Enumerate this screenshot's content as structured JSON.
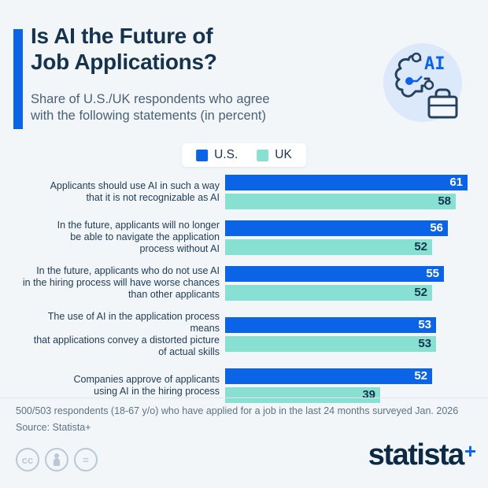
{
  "header": {
    "title": "Is AI the Future of\nJob Applications?",
    "subtitle": "Share of U.S./UK respondents who agree\nwith the following statements (in percent)",
    "accent_color": "#0b63e6",
    "hero_icon": "ai-brain-briefcase-icon",
    "hero_icon_text": "AI"
  },
  "legend": {
    "items": [
      {
        "label": "U.S.",
        "color": "#0b63e6"
      },
      {
        "label": "UK",
        "color": "#87e0d1"
      }
    ]
  },
  "chart_data": {
    "type": "bar",
    "orientation": "horizontal",
    "unit": "percent",
    "grid": false,
    "legend_position": "top-center",
    "xlim": [
      0,
      61
    ],
    "categories": [
      "Applicants should use AI in such a way that it is not recognizable as AI",
      "In the future, applicants will no longer be able to navigate the application process without AI",
      "In the future, applicants who do not use AI in the hiring process will have worse chances than other applicants",
      "The use of AI in the application process means that applications convey a distorted picture of actual skills",
      "Companies approve of applicants using AI in the hiring process"
    ],
    "category_label_lines": [
      [
        "Applicants should use AI in such a way",
        "that it is not recognizable as AI"
      ],
      [
        "In the future, applicants will no longer",
        "be able to navigate the application",
        "process without AI"
      ],
      [
        "In the future, applicants who do not use AI",
        "in the hiring process will have worse chances",
        "than other applicants"
      ],
      [
        "The use of AI in the application process means",
        "that applications convey a distorted picture",
        "of actual skills"
      ],
      [
        "Companies approve of applicants",
        "using AI in the hiring process"
      ]
    ],
    "series": [
      {
        "name": "U.S.",
        "color": "#0b63e6",
        "value_text_color": "#ffffff",
        "values": [
          61,
          56,
          55,
          53,
          52
        ]
      },
      {
        "name": "UK",
        "color": "#87e0d1",
        "value_text_color": "#16334e",
        "values": [
          58,
          52,
          52,
          53,
          39
        ]
      }
    ]
  },
  "footer": {
    "note_line1": "500/503 respondents (18-67 y/o) who have applied for a job in the last 24 months surveyed Jan. 2026",
    "note_line2": "Source: Statista+",
    "license_icons": [
      {
        "name": "cc-license-icon",
        "glyph": "cc"
      },
      {
        "name": "attribution-icon",
        "glyph": "person"
      },
      {
        "name": "equals-icon",
        "glyph": "="
      }
    ],
    "brand_name": "statista",
    "brand_plus": "+"
  }
}
